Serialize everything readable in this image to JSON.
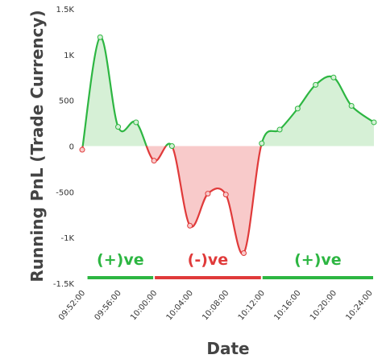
{
  "chart_data": {
    "type": "area",
    "xlabel": "Date",
    "ylabel": "Running PnL (Trade Currency)",
    "ylim": [
      -1500,
      1500
    ],
    "yticks": [
      {
        "value": 1500,
        "label": "1.5K"
      },
      {
        "value": 1000,
        "label": "1K"
      },
      {
        "value": 500,
        "label": "500"
      },
      {
        "value": 0,
        "label": "0"
      },
      {
        "value": -500,
        "label": "-500"
      },
      {
        "value": -1000,
        "label": "-1K"
      },
      {
        "value": -1500,
        "label": "-1.5K"
      }
    ],
    "xlim": [
      "09:52:00",
      "10:24:30"
    ],
    "xticks": [
      "09:52:00",
      "09:56:00",
      "10:00:00",
      "10:04:00",
      "10:08:00",
      "10:12:00",
      "10:16:00",
      "10:20:00",
      "10:24:00"
    ],
    "grid": false,
    "colors": {
      "positive": "#2db642",
      "negative": "#e03a3a",
      "positive_fill": "#d6f0d6",
      "negative_fill": "#f8caca"
    },
    "series": [
      {
        "x": [
          "09:52:00",
          "09:54:00",
          "09:56:00",
          "09:58:00",
          "10:00:00",
          "10:02:00",
          "10:04:00",
          "10:06:00",
          "10:08:00",
          "10:10:00",
          "10:12:00",
          "10:14:00",
          "10:16:00",
          "10:18:00",
          "10:20:00",
          "10:22:00",
          "10:24:30"
        ],
        "values": [
          -40,
          1190,
          210,
          260,
          -160,
          0,
          -870,
          -520,
          -530,
          -1170,
          30,
          180,
          410,
          670,
          750,
          440,
          260
        ]
      }
    ],
    "annotations": [
      {
        "text": "(+)ve",
        "sign": "positive",
        "from": "09:52:30",
        "to": "10:00:00"
      },
      {
        "text": "(-)ve",
        "sign": "negative",
        "from": "10:00:00",
        "to": "10:12:00"
      },
      {
        "text": "(+)ve",
        "sign": "positive",
        "from": "10:12:00",
        "to": "10:24:30"
      }
    ]
  }
}
